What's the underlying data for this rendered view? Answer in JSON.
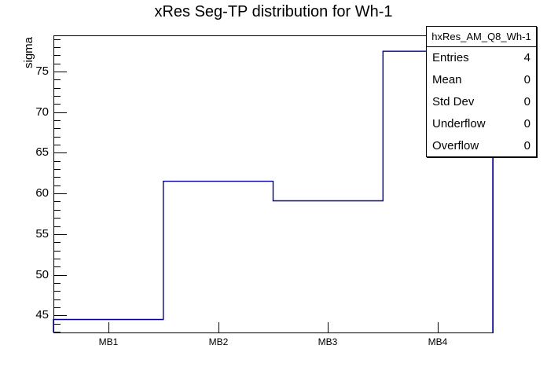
{
  "title": "xRes Seg-TP distribution for Wh-1",
  "colors": {
    "background": "#ffffff",
    "frame": "#000000",
    "hist_line": "#000099"
  },
  "chart_data": {
    "type": "line",
    "style": "histogram-step",
    "title": "xRes Seg-TP distribution for Wh-1",
    "categories": [
      "MB1",
      "MB2",
      "MB3",
      "MB4"
    ],
    "values": [
      44.5,
      61.5,
      59.1,
      77.5
    ],
    "xlabel": "",
    "ylabel": "sigma",
    "ylim": [
      42.9,
      79.45
    ],
    "yticks_major": [
      45,
      50,
      55,
      60,
      65,
      70,
      75
    ],
    "minor_tick_step": 1,
    "grid": false,
    "legend_position": "none",
    "line_color": "#000099"
  },
  "stats_box": {
    "title": "hxRes_AM_Q8_Wh-1",
    "rows": [
      {
        "label": "Entries",
        "value": "4"
      },
      {
        "label": "Mean",
        "value": "0"
      },
      {
        "label": "Std Dev",
        "value": "0"
      },
      {
        "label": "Underflow",
        "value": "0"
      },
      {
        "label": "Overflow",
        "value": "0"
      }
    ]
  }
}
